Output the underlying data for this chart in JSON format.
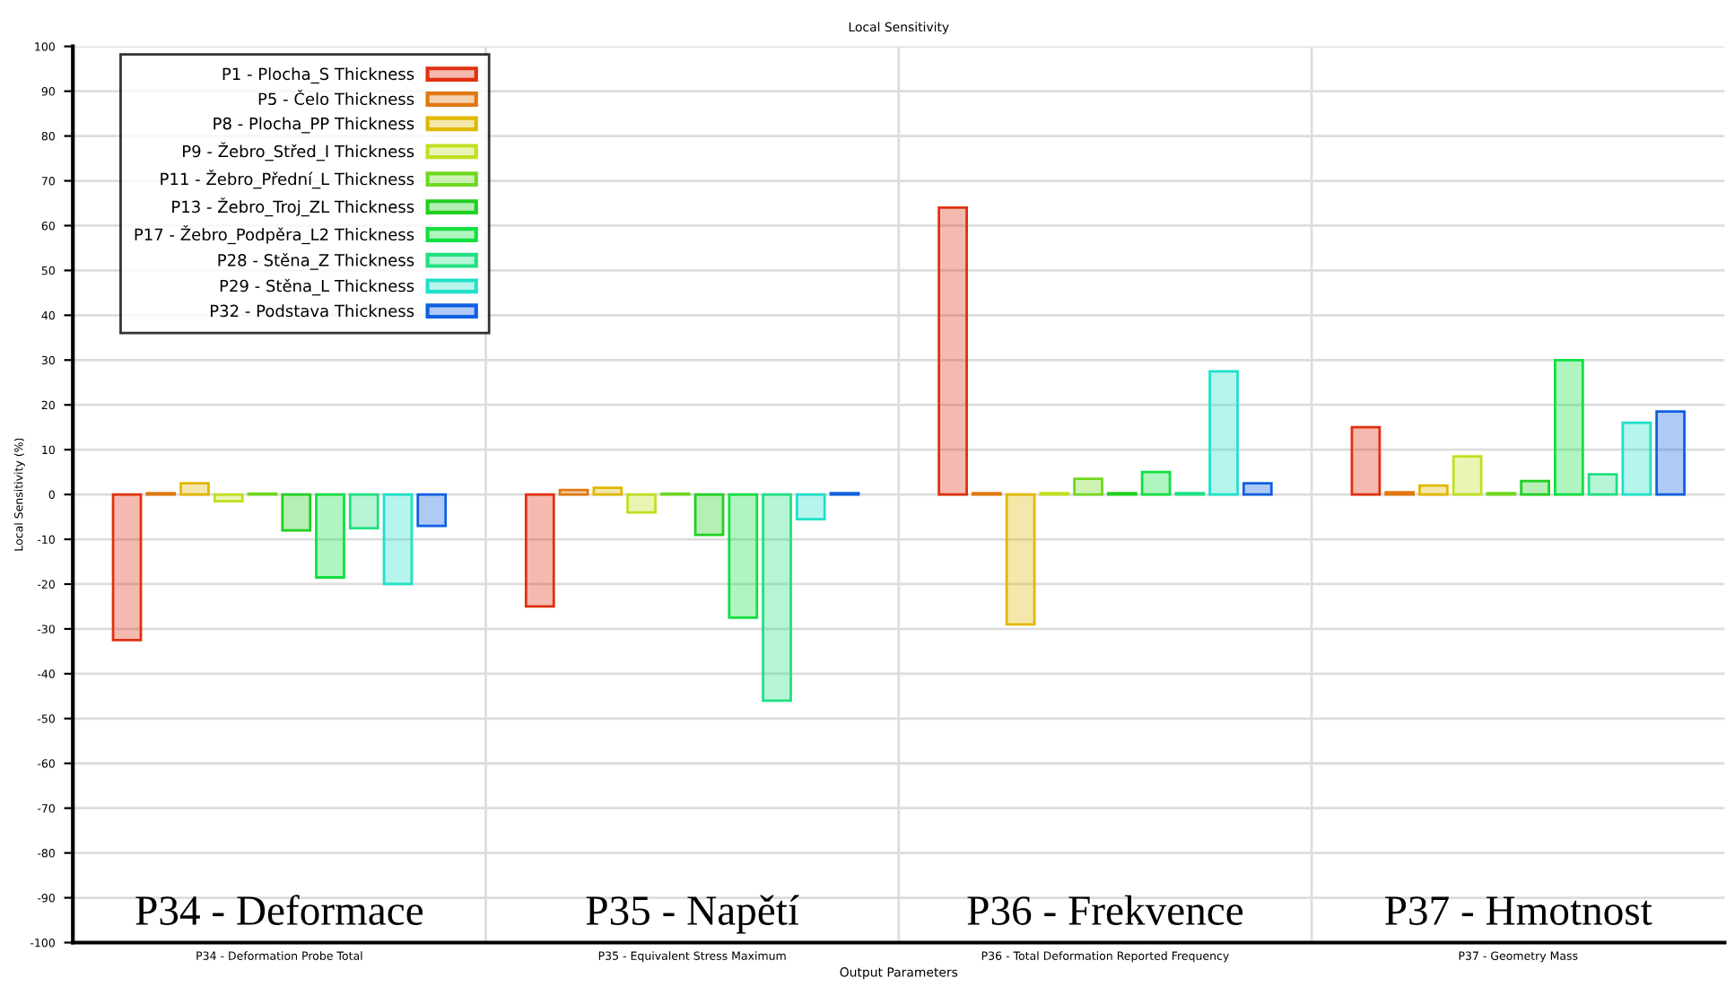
{
  "chart_data": {
    "type": "bar",
    "title": "Local Sensitivity",
    "xlabel": "Output Parameters",
    "ylabel": "Local Sensitivity (%)",
    "categories": [
      "P34 - Deformation Probe Total",
      "P35 - Equivalent Stress Maximum",
      "P36 - Total Deformation Reported Frequency",
      "P37 - Geometry Mass"
    ],
    "series": [
      {
        "name": "P1 - Plocha_S Thickness",
        "color": "#e03010",
        "values": [
          -32.5,
          -25,
          64,
          15
        ]
      },
      {
        "name": "P5 - Čelo Thickness",
        "color": "#e07810",
        "values": [
          0.3,
          1,
          0.3,
          0.5
        ]
      },
      {
        "name": "P8 - Plocha_PP Thickness",
        "color": "#e0b800",
        "values": [
          2.5,
          1.5,
          -29,
          2
        ]
      },
      {
        "name": "P9 - Žebro_Střed_I Thickness",
        "color": "#c0e020",
        "values": [
          -1.5,
          -4,
          0.3,
          8.5
        ]
      },
      {
        "name": "P11 - Žebro_Přední_L Thickness",
        "color": "#70d820",
        "values": [
          0.2,
          0.2,
          3.5,
          0.3
        ]
      },
      {
        "name": "P13 - Žebro_Troj_ZL Thickness",
        "color": "#20d020",
        "values": [
          -8,
          -9,
          0.3,
          3
        ]
      },
      {
        "name": "P17 - Žebro_Podpěra_L2 Thickness",
        "color": "#10e040",
        "values": [
          -18.5,
          -27.5,
          5,
          30
        ]
      },
      {
        "name": "P28 - Stěna_Z Thickness",
        "color": "#20e080",
        "values": [
          -7.5,
          -46,
          0.3,
          4.5
        ]
      },
      {
        "name": "P29 - Stěna_L Thickness",
        "color": "#20e0c8",
        "values": [
          -20,
          -5.5,
          27.5,
          16
        ]
      },
      {
        "name": "P32 - Podstava Thickness",
        "color": "#1060e0",
        "values": [
          -7,
          0.3,
          2.5,
          18.5
        ]
      }
    ],
    "annotations": [
      "P34 - Deformace",
      "P35 - Napětí",
      "P36 - Frekvence",
      "P37 - Hmotnost"
    ],
    "ylim": [
      -100,
      100
    ],
    "yticks": [
      -100,
      -90,
      -80,
      -70,
      -60,
      -50,
      -40,
      -30,
      -20,
      -10,
      0,
      10,
      20,
      30,
      40,
      50,
      60,
      70,
      80,
      90,
      100
    ],
    "grid": true,
    "legend": "top left"
  }
}
